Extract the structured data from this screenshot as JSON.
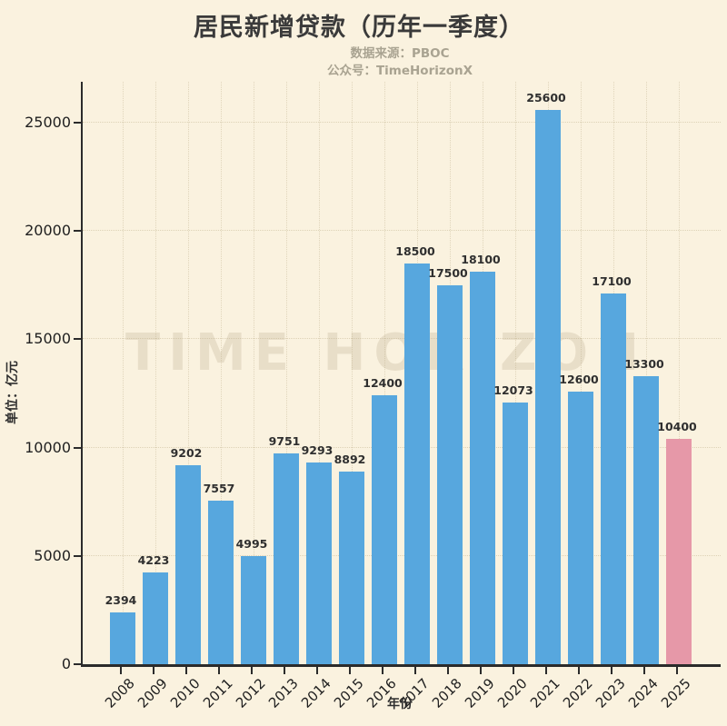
{
  "header": {
    "title": "居民新增贷款（历年一季度）",
    "subtitle_line1": "数据来源：PBOC",
    "subtitle_line2": "公众号：TimeHorizonX"
  },
  "watermark": "TIME HORIZON",
  "chart_data": {
    "type": "bar",
    "title": "居民新增贷款（历年一季度）",
    "xlabel": "年份",
    "ylabel": "单位：亿元",
    "categories": [
      "2008",
      "2009",
      "2010",
      "2011",
      "2012",
      "2013",
      "2014",
      "2015",
      "2016",
      "2017",
      "2018",
      "2019",
      "2020",
      "2021",
      "2022",
      "2023",
      "2024",
      "2025"
    ],
    "values": [
      2394,
      4223,
      9202,
      7557,
      4995,
      9751,
      9293,
      8892,
      12400,
      18500,
      17500,
      18100,
      12073,
      25600,
      12600,
      17100,
      13300,
      10400
    ],
    "yticks": [
      0,
      5000,
      10000,
      15000,
      20000,
      25000
    ],
    "ylim": [
      0,
      26880
    ],
    "grid": "dotted, horizontal and vertical",
    "legend_position": "none",
    "bar_color": "#57A7DE",
    "highlight_color": "#E698A8",
    "highlight_index": 17,
    "background_color": "#FAF2DF"
  }
}
